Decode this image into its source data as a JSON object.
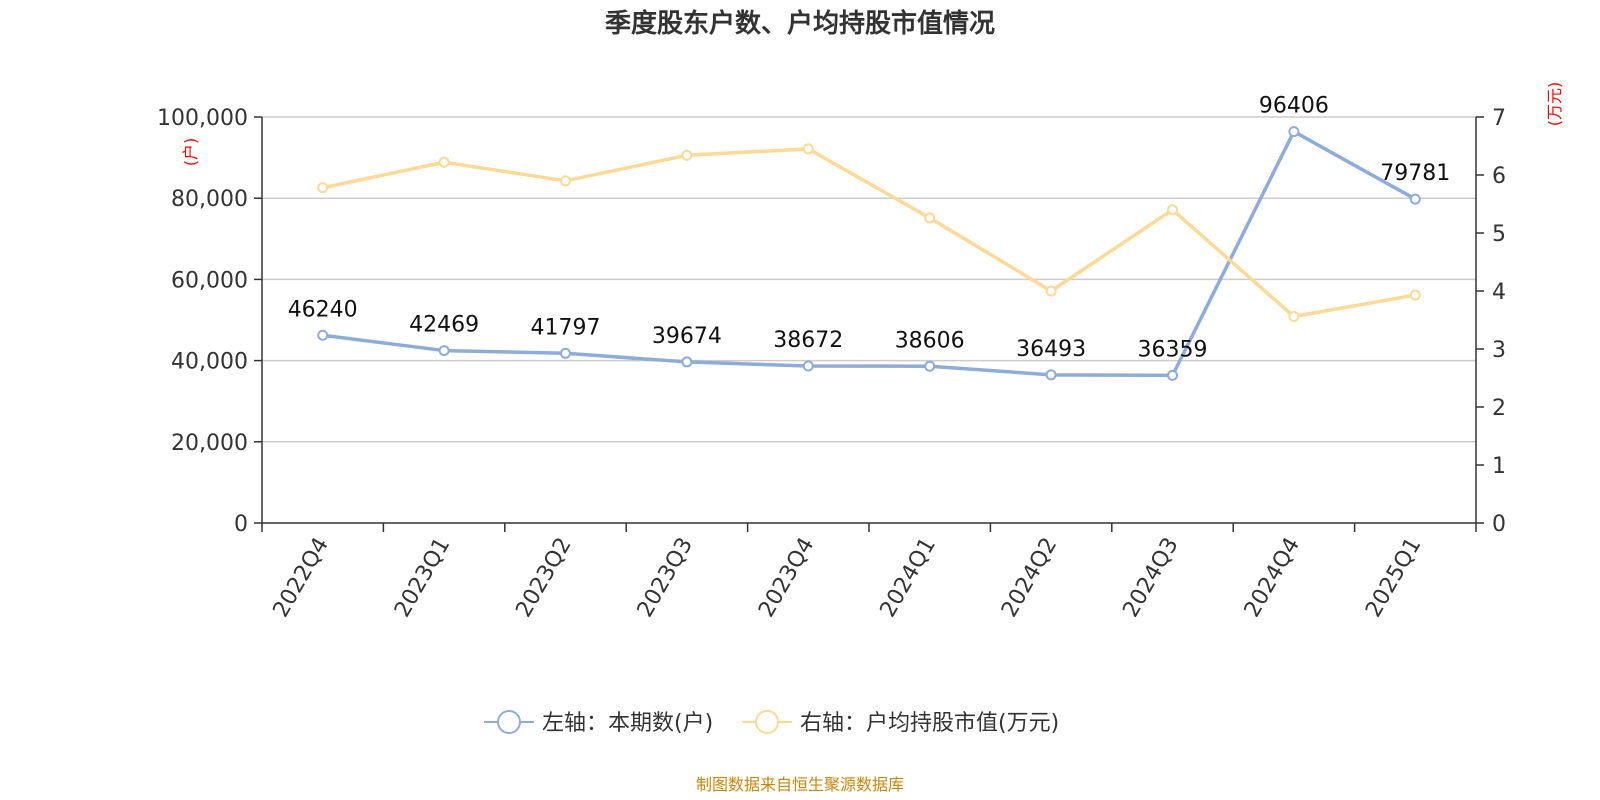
{
  "chart_data": {
    "type": "line",
    "title": "季度股东户数、户均持股市值情况",
    "categories": [
      "2022Q4",
      "2023Q1",
      "2023Q2",
      "2023Q3",
      "2023Q4",
      "2024Q1",
      "2024Q2",
      "2024Q3",
      "2024Q4",
      "2025Q1"
    ],
    "left_axis": {
      "unit_label": "(户)",
      "ylim": [
        0,
        100000
      ],
      "ticks": [
        "0",
        "20,000",
        "40,000",
        "60,000",
        "80,000",
        "100,000"
      ]
    },
    "right_axis": {
      "unit_label": "(万元)",
      "ylim": [
        0,
        7
      ],
      "ticks": [
        "0",
        "1",
        "2",
        "3",
        "4",
        "5",
        "6",
        "7"
      ]
    },
    "series": [
      {
        "name": "左轴：本期数(户)",
        "axis": "left",
        "color": "#8eacd8",
        "values": [
          46240,
          42469,
          41797,
          39674,
          38672,
          38606,
          36493,
          36359,
          96406,
          79781
        ],
        "labels": [
          "46240",
          "42469",
          "41797",
          "39674",
          "38672",
          "38606",
          "36493",
          "36359",
          "96406",
          "79781"
        ]
      },
      {
        "name": "右轴：户均持股市值(万元)",
        "axis": "right",
        "color": "#fcd997",
        "values": [
          5.78,
          6.22,
          5.9,
          6.34,
          6.45,
          5.26,
          4.0,
          5.4,
          3.56,
          3.93
        ]
      }
    ],
    "grid": true,
    "legend_position": "bottom-center",
    "source": "制图数据来自恒生聚源数据库"
  }
}
